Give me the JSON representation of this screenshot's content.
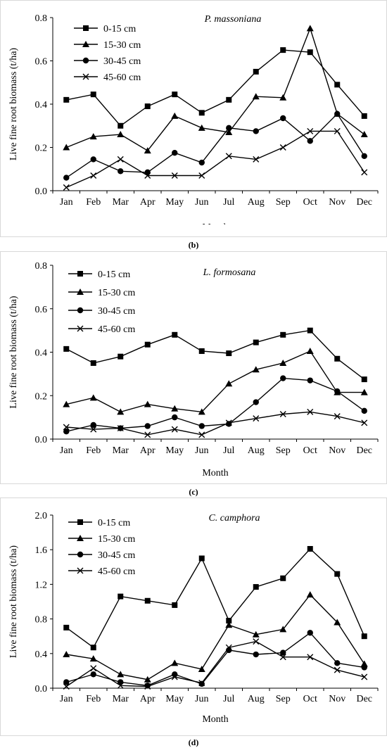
{
  "chart_data": [
    {
      "type": "line",
      "title": "P. massoniana",
      "xlabel": "Month",
      "ylabel": "Live fine root biomass (t/ha)",
      "ylim": [
        0,
        0.8
      ],
      "yticks": [
        "0.0",
        "0.2",
        "0.4",
        "0.6",
        "0.8"
      ],
      "legend_position": "top-left",
      "categories": [
        "Jan",
        "Feb",
        "Mar",
        "Apr",
        "May",
        "Jun",
        "Jul",
        "Aug",
        "Sep",
        "Oct",
        "Nov",
        "Dec"
      ],
      "caption": "(b)",
      "series": [
        {
          "name": "0-15 cm",
          "marker": "square",
          "values": [
            0.42,
            0.445,
            0.3,
            0.39,
            0.445,
            0.36,
            0.42,
            0.55,
            0.65,
            0.64,
            0.49,
            0.345
          ]
        },
        {
          "name": "15-30 cm",
          "marker": "triangle",
          "values": [
            0.2,
            0.25,
            0.26,
            0.185,
            0.345,
            0.29,
            0.27,
            0.435,
            0.43,
            0.75,
            0.355,
            0.26
          ]
        },
        {
          "name": "30-45 cm",
          "marker": "circle",
          "values": [
            0.06,
            0.145,
            0.09,
            0.085,
            0.175,
            0.13,
            0.29,
            0.275,
            0.335,
            0.23,
            0.355,
            0.16
          ]
        },
        {
          "name": "45-60 cm",
          "marker": "cross",
          "values": [
            0.015,
            0.07,
            0.145,
            0.07,
            0.07,
            0.07,
            0.16,
            0.145,
            0.2,
            0.275,
            0.275,
            0.085
          ]
        }
      ]
    },
    {
      "type": "line",
      "title": "L. formosana",
      "xlabel": "Month",
      "ylabel": "Live fine root biomass (t/ha)",
      "ylim": [
        0,
        0.8
      ],
      "yticks": [
        "0.0",
        "0.2",
        "0.4",
        "0.6",
        "0.8"
      ],
      "legend_position": "top-left",
      "categories": [
        "Jan",
        "Feb",
        "Mar",
        "Apr",
        "May",
        "Jun",
        "Jul",
        "Aug",
        "Sep",
        "Oct",
        "Nov",
        "Dec"
      ],
      "caption": "(c)",
      "series": [
        {
          "name": "0-15 cm",
          "marker": "square",
          "values": [
            0.415,
            0.35,
            0.38,
            0.435,
            0.48,
            0.405,
            0.395,
            0.445,
            0.48,
            0.5,
            0.37,
            0.275
          ]
        },
        {
          "name": "15-30 cm",
          "marker": "triangle",
          "values": [
            0.16,
            0.19,
            0.125,
            0.16,
            0.14,
            0.125,
            0.255,
            0.32,
            0.35,
            0.405,
            0.215,
            0.215
          ]
        },
        {
          "name": "30-45 cm",
          "marker": "circle",
          "values": [
            0.035,
            0.065,
            0.05,
            0.06,
            0.1,
            0.06,
            0.07,
            0.17,
            0.28,
            0.27,
            0.22,
            0.13
          ]
        },
        {
          "name": "45-60 cm",
          "marker": "cross",
          "values": [
            0.055,
            0.045,
            0.05,
            0.02,
            0.045,
            0.02,
            0.075,
            0.095,
            0.115,
            0.125,
            0.105,
            0.075
          ]
        }
      ]
    },
    {
      "type": "line",
      "title": "C. camphora",
      "xlabel": "Month",
      "ylabel": "Live fine root biomass (t/ha)",
      "ylim": [
        0,
        2.0
      ],
      "yticks": [
        "0.0",
        "0.4",
        "0.8",
        "1.2",
        "1.6",
        "2.0"
      ],
      "legend_position": "top-left",
      "categories": [
        "Jan",
        "Feb",
        "Mar",
        "Apr",
        "May",
        "Jun",
        "Jul",
        "Aug",
        "Sep",
        "Oct",
        "Nov",
        "Dec"
      ],
      "caption": "(d)",
      "series": [
        {
          "name": "0-15 cm",
          "marker": "square",
          "values": [
            0.7,
            0.47,
            1.06,
            1.01,
            0.96,
            1.5,
            0.78,
            1.17,
            1.27,
            1.61,
            1.32,
            0.6
          ]
        },
        {
          "name": "15-30 cm",
          "marker": "triangle",
          "values": [
            0.39,
            0.34,
            0.16,
            0.1,
            0.29,
            0.22,
            0.73,
            0.62,
            0.68,
            1.08,
            0.76,
            0.28
          ]
        },
        {
          "name": "30-45 cm",
          "marker": "circle",
          "values": [
            0.07,
            0.16,
            0.07,
            0.03,
            0.16,
            0.05,
            0.44,
            0.39,
            0.41,
            0.64,
            0.29,
            0.24
          ]
        },
        {
          "name": "45-60 cm",
          "marker": "cross",
          "values": [
            0.02,
            0.23,
            0.03,
            0.02,
            0.13,
            0.06,
            0.47,
            0.54,
            0.36,
            0.36,
            0.21,
            0.13
          ]
        }
      ]
    }
  ]
}
